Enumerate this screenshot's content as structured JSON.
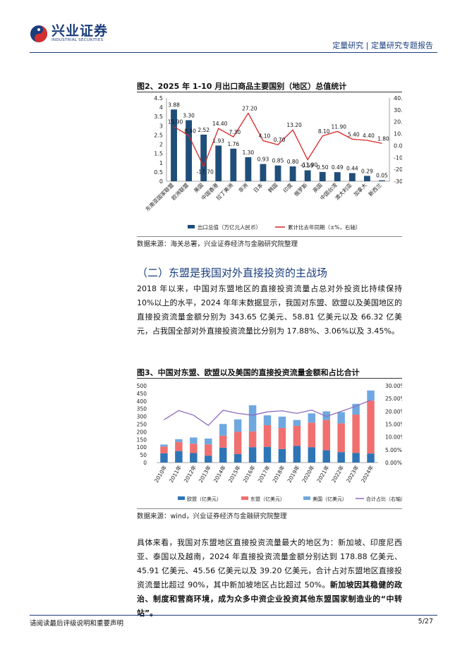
{
  "header": {
    "logo_cn": "兴业证券",
    "logo_en": "INDUSTRIAL SECURITIES",
    "report_type": "定量研究 | 定量研究专题报告"
  },
  "figure2": {
    "title": "图2、2025 年 1-10 月出口商品主要国别（地区）总值统计",
    "source": "数据来源：海关总署，兴业证券经济与金融研究院整理"
  },
  "section": {
    "title": "（二）东盟是我国对外直接投资的主战场",
    "para1": "2018 年以来，中国对东盟地区的直接投资流量占总对外投资比持续保持 10%以上的水平，2024 年年末数据显示，我国对东盟、欧盟以及美国地区的直接投资流量金额分别为 343.65 亿美元、58.81 亿美元以及 66.32 亿美元，占我国全部对外直接投资流量比分别为 17.88%、3.06%以及 3.45%。"
  },
  "figure3": {
    "title": "图3、中国对东盟、欧盟以及美国的直接投资流量金额和占比合计",
    "source": "数据来源：wind，兴业证券经济与金融研究院整理"
  },
  "para2": {
    "normal": "具体来看，我国对东盟地区直接投资流量最大的地区为：新加坡、印度尼西亚、泰国以及越南，2024 年直接投资流量金额分别达到 178.88 亿美元、45.91 亿美元、45.56 亿美元以及 39.20 亿美元，合计占对东盟地区直接投资流量比超过 90%，其中新加坡地区占比超过 50%。",
    "bold": "新加坡因其稳健的政治、制度和营商环境，成为众多中资企业投资其他东盟国家制造业的“中转站”。"
  },
  "footer": {
    "left": "请阅读最后评级说明和重要声明",
    "right": "5/27"
  },
  "colors": {
    "brand": "#1a3d7c",
    "bar2": "#1f4e79",
    "line2": "#d62728",
    "eu": "#2e75b6",
    "asean": "#f07070",
    "us": "#6fa8e0",
    "ratio": "#8e6bbf"
  },
  "chart_data": [
    {
      "type": "bar",
      "categories": [
        "东南亚国家联盟",
        "欧洲联盟",
        "美国",
        "中国香港",
        "拉丁美洲",
        "非洲",
        "日本",
        "韩国",
        "印度",
        "俄罗斯",
        "英国",
        "中国台湾",
        "澳大利亚",
        "加拿大",
        "新西兰"
      ],
      "series": [
        {
          "name": "出口总值（万亿元人民币）",
          "type": "bar",
          "axis": "left",
          "values": [
            3.88,
            3.3,
            2.52,
            1.93,
            1.76,
            1.3,
            0.93,
            0.85,
            0.8,
            0.59,
            0.5,
            0.49,
            0.44,
            0.29,
            0.05
          ],
          "labels": [
            "3.88",
            "3.30",
            "2.52",
            "1.93",
            "1.76",
            "1.30",
            "0.93",
            "0.85",
            "0.80",
            "0.59",
            "0.50",
            "0.49",
            "0.44",
            "0.29",
            "0.05"
          ]
        },
        {
          "name": "累计比去年同期（±%，右轴）",
          "type": "line",
          "axis": "right",
          "values": [
            15.9,
            8.4,
            -17.7,
            14.4,
            7.3,
            27.2,
            4.1,
            0.7,
            13.2,
            -11.9,
            8.1,
            11.9,
            5.4,
            4.4,
            1.8
          ],
          "labels": [
            "15.90",
            "8.40",
            "-17.70",
            "14.40",
            "7.30",
            "27.20",
            "4.10",
            "0.70",
            "13.20",
            "-11.90",
            "8.10",
            "11.90",
            "5.40",
            "4.40",
            "1.80"
          ]
        }
      ],
      "yticks_left": [
        "0",
        "0.5",
        "1",
        "1.5",
        "2",
        "2.5",
        "3",
        "3.5",
        "4",
        "4.5"
      ],
      "yticks_right": [
        "-30.0",
        "-20.0",
        "-10.0",
        "0.0",
        "10.0",
        "20.0",
        "30.0",
        "40.0"
      ],
      "ylim_left": [
        0,
        4.5
      ],
      "ylim_right": [
        -30,
        40
      ],
      "legend_position": "bottom"
    },
    {
      "type": "bar",
      "stacked": true,
      "categories": [
        "2010年",
        "2011年",
        "2012年",
        "2013年",
        "2014年",
        "2015年",
        "2016年",
        "2017年",
        "2018年",
        "2019年",
        "2020年",
        "2021年",
        "2022年",
        "2023年",
        "2024年"
      ],
      "series": [
        {
          "name": "欧盟（亿美元）",
          "type": "bar",
          "axis": "left",
          "values": [
            60,
            75,
            62,
            45,
            97,
            55,
            100,
            102,
            88,
            108,
            100,
            80,
            68,
            62,
            59
          ]
        },
        {
          "name": "东盟（亿美元）",
          "type": "bar",
          "axis": "left",
          "values": [
            44,
            59,
            61,
            73,
            78,
            146,
            103,
            141,
            137,
            131,
            160,
            197,
            187,
            250,
            344
          ]
        },
        {
          "name": "美国（亿美元）",
          "type": "bar",
          "axis": "left",
          "values": [
            13,
            18,
            40,
            38,
            76,
            80,
            170,
            64,
            74,
            38,
            60,
            56,
            73,
            70,
            66
          ]
        },
        {
          "name": "合计占比（右轴）",
          "type": "line",
          "axis": "right",
          "values": [
            16.7,
            20.3,
            18.5,
            14.5,
            20.4,
            19.2,
            18.5,
            19.8,
            20.2,
            19.2,
            20.5,
            18.0,
            20.0,
            22.0,
            24.4
          ]
        }
      ],
      "yticks_left": [
        "0",
        "50",
        "100",
        "150",
        "200",
        "250",
        "300",
        "350",
        "400",
        "450",
        "500"
      ],
      "yticks_right": [
        "0.00%",
        "5.00%",
        "10.00%",
        "15.00%",
        "20.00%",
        "25.00%",
        "30.00%"
      ],
      "ylim_left": [
        0,
        500
      ],
      "ylim_right": [
        0,
        30
      ],
      "legend_position": "bottom"
    }
  ]
}
